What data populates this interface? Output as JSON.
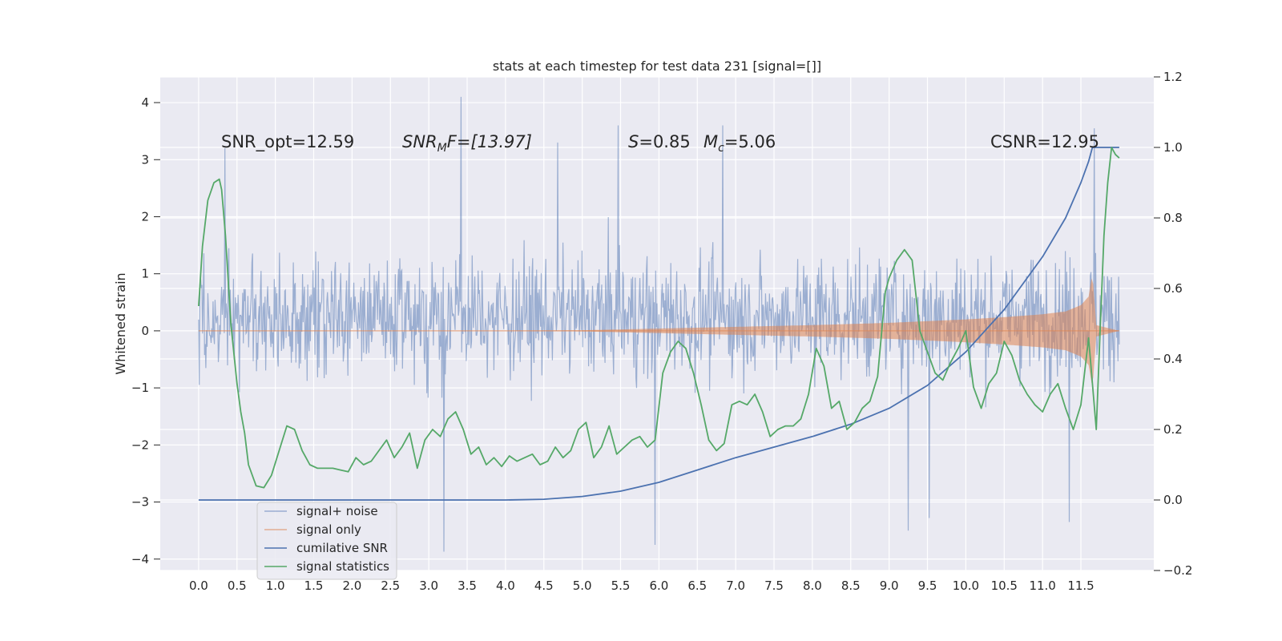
{
  "chart_data": {
    "type": "line",
    "title": "stats at each timestep for test data 231 [signal=[]]",
    "ylabel": "Whitened strain",
    "xlabel": "",
    "y2label": "",
    "xlim": [
      -0.5,
      12.45
    ],
    "ylim": [
      -4.2,
      4.45
    ],
    "y2lim": [
      -0.2,
      1.2
    ],
    "xticks": [
      0.0,
      0.5,
      1.0,
      1.5,
      2.0,
      2.5,
      3.0,
      3.5,
      4.0,
      4.5,
      5.0,
      5.5,
      6.0,
      6.5,
      7.0,
      7.5,
      8.0,
      8.5,
      9.0,
      9.5,
      10.0,
      10.5,
      11.0,
      11.5
    ],
    "xtick_labels": [
      "0.0",
      "0.5",
      "1.0",
      "1.5",
      "2.0",
      "2.5",
      "3.0",
      "3.5",
      "4.0",
      "4.5",
      "5.0",
      "5.5",
      "6.0",
      "6.5",
      "7.0",
      "7.5",
      "8.0",
      "8.5",
      "9.0",
      "9.5",
      "10.0",
      "10.5",
      "11.0",
      "11.5"
    ],
    "yticks": [
      4,
      3,
      2,
      1,
      0,
      -1,
      -2,
      -3,
      -4
    ],
    "ytick_labels": [
      "4",
      "3",
      "2",
      "1",
      "0",
      "−1",
      "−2",
      "−3",
      "−4"
    ],
    "y2ticks": [
      1.2,
      1.0,
      0.8,
      0.6,
      0.4,
      0.2,
      0.0,
      -0.2
    ],
    "y2tick_labels": [
      "1.2",
      "1.0",
      "0.8",
      "0.6",
      "0.4",
      "0.2",
      "0.0",
      "−0.2"
    ],
    "grid": true,
    "legend_position": "lower-left",
    "annotations": {
      "snr_opt": "SNR_opt=12.59",
      "snr_mf_var": "SNR",
      "snr_mf_sub": "M",
      "snr_mf_rest": "F=[13.97]",
      "s_var": "S",
      "s_rest": "=0.85",
      "mc_var": "M",
      "mc_sub": "c",
      "mc_rest": "=5.06",
      "csnr": "CSNR=12.95"
    },
    "series": [
      {
        "name": "signal+ noise",
        "axis": "left",
        "color": "#4c72b0",
        "description_values": {
          "x_range": [
            0.0,
            12.0
          ],
          "typical_band": [
            -1.7,
            2.2
          ],
          "notable_peaks": [
            [
              0.34,
              3.2
            ],
            [
              3.42,
              4.1
            ],
            [
              4.68,
              3.3
            ],
            [
              5.47,
              3.6
            ],
            [
              6.83,
              3.6
            ],
            [
              11.67,
              3.55
            ]
          ],
          "notable_troughs": [
            [
              3.2,
              -3.87
            ],
            [
              5.95,
              -3.75
            ],
            [
              9.25,
              -3.5
            ],
            [
              9.52,
              -3.28
            ],
            [
              11.35,
              -3.35
            ]
          ]
        }
      },
      {
        "name": "signal only",
        "axis": "left",
        "color": "#dd8452",
        "envelope": {
          "x": [
            0.0,
            4.0,
            5.0,
            6.0,
            7.0,
            8.0,
            9.0,
            10.0,
            10.5,
            11.0,
            11.3,
            11.5,
            11.6,
            11.65,
            11.7,
            12.0
          ],
          "amp": [
            0.0,
            0.0,
            0.01,
            0.04,
            0.07,
            0.1,
            0.14,
            0.2,
            0.24,
            0.29,
            0.34,
            0.45,
            0.6,
            1.0,
            0.1,
            0.0
          ]
        }
      },
      {
        "name": "cumilative SNR",
        "axis": "right",
        "color": "#4c72b0",
        "x": [
          0.0,
          4.0,
          4.5,
          5.0,
          5.5,
          6.0,
          6.5,
          7.0,
          7.5,
          8.0,
          8.5,
          9.0,
          9.5,
          10.0,
          10.5,
          11.0,
          11.3,
          11.5,
          11.6,
          11.65,
          11.7,
          12.0
        ],
        "values": [
          0.0,
          0.0,
          0.002,
          0.01,
          0.025,
          0.05,
          0.085,
          0.12,
          0.15,
          0.18,
          0.215,
          0.26,
          0.325,
          0.42,
          0.54,
          0.69,
          0.8,
          0.9,
          0.96,
          1.0,
          1.0,
          1.0
        ]
      },
      {
        "name": "signal statistics",
        "axis": "right",
        "color": "#55a868",
        "x": [
          0.0,
          0.05,
          0.12,
          0.2,
          0.27,
          0.3,
          0.35,
          0.42,
          0.5,
          0.55,
          0.6,
          0.65,
          0.75,
          0.85,
          0.95,
          1.05,
          1.15,
          1.25,
          1.35,
          1.45,
          1.55,
          1.65,
          1.75,
          1.85,
          1.95,
          2.05,
          2.15,
          2.25,
          2.35,
          2.45,
          2.55,
          2.65,
          2.75,
          2.85,
          2.95,
          3.05,
          3.15,
          3.25,
          3.35,
          3.45,
          3.55,
          3.65,
          3.75,
          3.85,
          3.95,
          4.05,
          4.15,
          4.25,
          4.35,
          4.45,
          4.55,
          4.65,
          4.75,
          4.85,
          4.95,
          5.05,
          5.15,
          5.25,
          5.35,
          5.45,
          5.55,
          5.65,
          5.75,
          5.85,
          5.95,
          6.05,
          6.15,
          6.25,
          6.35,
          6.45,
          6.55,
          6.65,
          6.75,
          6.85,
          6.95,
          7.05,
          7.15,
          7.25,
          7.35,
          7.45,
          7.55,
          7.65,
          7.75,
          7.85,
          7.95,
          8.05,
          8.15,
          8.25,
          8.35,
          8.45,
          8.55,
          8.65,
          8.75,
          8.85,
          8.95,
          9.0,
          9.1,
          9.2,
          9.3,
          9.4,
          9.5,
          9.6,
          9.7,
          9.8,
          9.9,
          10.0,
          10.1,
          10.2,
          10.3,
          10.4,
          10.5,
          10.6,
          10.7,
          10.8,
          10.9,
          11.0,
          11.1,
          11.2,
          11.3,
          11.4,
          11.5,
          11.6,
          11.7,
          11.75,
          11.8,
          11.85,
          11.9,
          11.95,
          12.0
        ],
        "values": [
          0.55,
          0.72,
          0.85,
          0.9,
          0.91,
          0.88,
          0.75,
          0.5,
          0.33,
          0.25,
          0.19,
          0.1,
          0.04,
          0.035,
          0.07,
          0.14,
          0.21,
          0.2,
          0.14,
          0.1,
          0.09,
          0.09,
          0.09,
          0.085,
          0.08,
          0.12,
          0.1,
          0.11,
          0.14,
          0.17,
          0.12,
          0.15,
          0.19,
          0.09,
          0.17,
          0.2,
          0.18,
          0.23,
          0.25,
          0.2,
          0.13,
          0.15,
          0.1,
          0.12,
          0.095,
          0.125,
          0.11,
          0.12,
          0.13,
          0.1,
          0.11,
          0.15,
          0.12,
          0.14,
          0.2,
          0.22,
          0.12,
          0.15,
          0.21,
          0.13,
          0.15,
          0.17,
          0.18,
          0.15,
          0.17,
          0.36,
          0.42,
          0.45,
          0.43,
          0.36,
          0.27,
          0.17,
          0.14,
          0.16,
          0.27,
          0.28,
          0.27,
          0.3,
          0.25,
          0.18,
          0.2,
          0.21,
          0.21,
          0.23,
          0.3,
          0.43,
          0.38,
          0.26,
          0.28,
          0.2,
          0.22,
          0.26,
          0.28,
          0.35,
          0.59,
          0.63,
          0.68,
          0.71,
          0.68,
          0.48,
          0.42,
          0.36,
          0.34,
          0.39,
          0.43,
          0.48,
          0.32,
          0.26,
          0.33,
          0.36,
          0.45,
          0.41,
          0.34,
          0.3,
          0.27,
          0.25,
          0.3,
          0.33,
          0.26,
          0.2,
          0.27,
          0.46,
          0.2,
          0.48,
          0.75,
          0.9,
          1.0,
          0.98,
          0.97
        ]
      }
    ]
  }
}
